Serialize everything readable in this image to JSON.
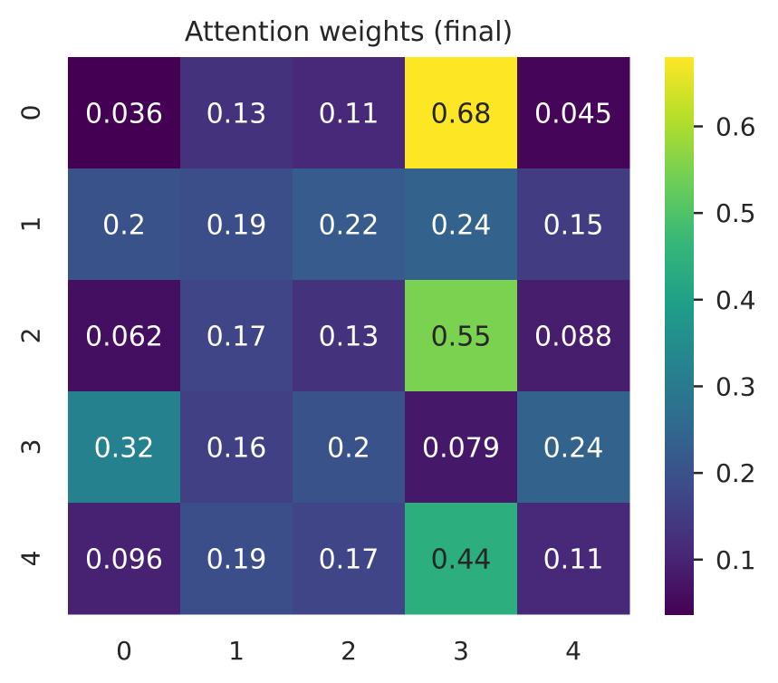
{
  "chart_data": {
    "type": "heatmap",
    "title": "Attention weights (final)",
    "xlabel": "",
    "ylabel": "",
    "x_ticks": [
      "0",
      "1",
      "2",
      "3",
      "4"
    ],
    "y_ticks": [
      "0",
      "1",
      "2",
      "3",
      "4"
    ],
    "values": [
      [
        0.036,
        0.13,
        0.11,
        0.68,
        0.045
      ],
      [
        0.2,
        0.19,
        0.22,
        0.24,
        0.15
      ],
      [
        0.062,
        0.17,
        0.13,
        0.55,
        0.088
      ],
      [
        0.32,
        0.16,
        0.2,
        0.079,
        0.24
      ],
      [
        0.096,
        0.19,
        0.17,
        0.44,
        0.11
      ]
    ],
    "annotations": [
      [
        "0.036",
        "0.13",
        "0.11",
        "0.68",
        "0.045"
      ],
      [
        "0.2",
        "0.19",
        "0.22",
        "0.24",
        "0.15"
      ],
      [
        "0.062",
        "0.17",
        "0.13",
        "0.55",
        "0.088"
      ],
      [
        "0.32",
        "0.16",
        "0.2",
        "0.079",
        "0.24"
      ],
      [
        "0.096",
        "0.19",
        "0.17",
        "0.44",
        "0.11"
      ]
    ],
    "colormap": "viridis",
    "vmin": 0.036,
    "vmax": 0.68,
    "colorbar_ticks": [
      {
        "value": 0.1,
        "label": "0.1"
      },
      {
        "value": 0.2,
        "label": "0.2"
      },
      {
        "value": 0.3,
        "label": "0.3"
      },
      {
        "value": 0.4,
        "label": "0.4"
      },
      {
        "value": 0.5,
        "label": "0.5"
      },
      {
        "value": 0.6,
        "label": "0.6"
      }
    ],
    "grid": false
  }
}
